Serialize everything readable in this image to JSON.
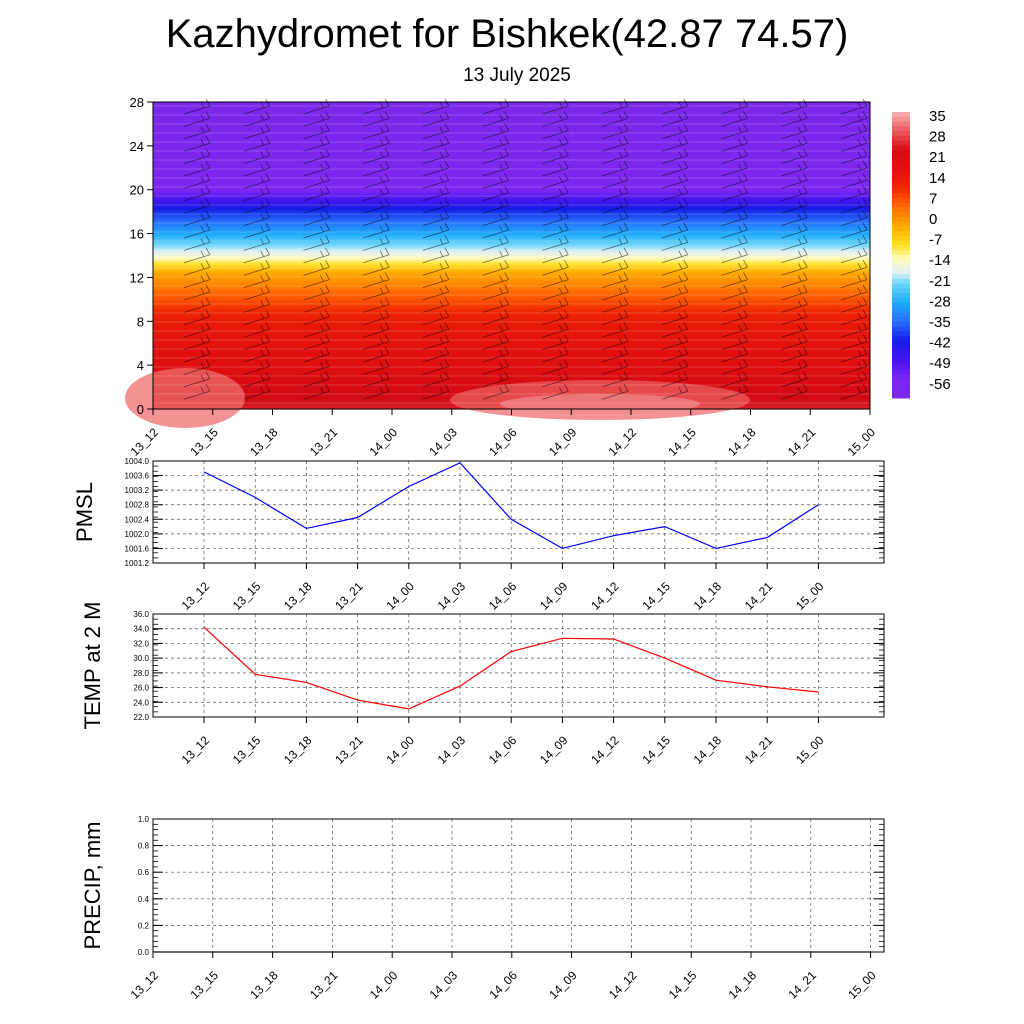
{
  "title": "Kazhydromet for Bishkek(42.87 74.57)",
  "subtitle": "13 July 2025",
  "chart_data": [
    {
      "type": "heatmap",
      "xlabel": "",
      "ylabel": "",
      "x_categories": [
        "13_12",
        "13_15",
        "13_18",
        "13_21",
        "14_00",
        "14_03",
        "14_06",
        "14_09",
        "14_12",
        "14_15",
        "14_18",
        "14_21",
        "15_00"
      ],
      "ylim": [
        0,
        28
      ],
      "yticks": [
        0,
        4,
        8,
        12,
        16,
        20,
        24,
        28
      ],
      "colorbar": {
        "labels": [
          "35",
          "28",
          "21",
          "14",
          "7",
          "0",
          "-7",
          "-14",
          "-21",
          "-28",
          "-35",
          "-42",
          "-49",
          "-56"
        ],
        "range": [
          -63,
          42
        ]
      },
      "temperature_profile": [
        {
          "y": 0,
          "value": 30
        },
        {
          "y": 2,
          "value": 26
        },
        {
          "y": 4,
          "value": 22
        },
        {
          "y": 8,
          "value": 18
        },
        {
          "y": 10,
          "value": 10
        },
        {
          "y": 12.5,
          "value": 0
        },
        {
          "y": 14,
          "value": -14
        },
        {
          "y": 16,
          "value": -28
        },
        {
          "y": 18,
          "value": -40
        },
        {
          "y": 20,
          "value": -56
        },
        {
          "y": 22,
          "value": -58
        },
        {
          "y": 28,
          "value": -62
        }
      ],
      "wind_barbs": "shown"
    },
    {
      "type": "line",
      "ylabel": "PMSL",
      "categories": [
        "13_12",
        "13_15",
        "13_18",
        "13_21",
        "14_00",
        "14_03",
        "14_06",
        "14_09",
        "14_12",
        "14_15",
        "14_18",
        "14_21",
        "15_00"
      ],
      "ylim": [
        1001.2,
        1004.0
      ],
      "yticks": [
        "1001.2",
        "1001.6",
        "1002.0",
        "1002.4",
        "1002.8",
        "1003.2",
        "1003.6",
        "1004.0"
      ],
      "series": [
        {
          "color": "#0000ff",
          "values": [
            1003.7,
            1003.0,
            1002.15,
            1002.45,
            1003.3,
            1003.95,
            1002.4,
            1001.6,
            1001.95,
            1002.2,
            1001.6,
            1001.9,
            1002.8
          ]
        }
      ],
      "grid": true
    },
    {
      "type": "line",
      "ylabel": "TEMP at 2 M",
      "categories": [
        "13_12",
        "13_15",
        "13_18",
        "13_21",
        "14_00",
        "14_03",
        "14_06",
        "14_09",
        "14_12",
        "14_15",
        "14_18",
        "14_21",
        "15_00"
      ],
      "ylim": [
        22.0,
        36.0
      ],
      "yticks": [
        "22.0",
        "24.0",
        "26.0",
        "28.0",
        "30.0",
        "32.0",
        "34.0",
        "36.0"
      ],
      "series": [
        {
          "color": "#ff0000",
          "values": [
            34.2,
            27.8,
            26.7,
            24.3,
            23.1,
            26.2,
            30.9,
            32.7,
            32.6,
            30.0,
            27.0,
            26.1,
            25.4
          ]
        }
      ],
      "grid": true
    },
    {
      "type": "line",
      "ylabel": "PRECIP, mm",
      "categories": [
        "13_12",
        "13_15",
        "13_18",
        "13_21",
        "14_00",
        "14_03",
        "14_06",
        "14_09",
        "14_12",
        "14_15",
        "14_18",
        "14_21",
        "15_00"
      ],
      "ylim": [
        0,
        1.0
      ],
      "yticks": [
        "0.0",
        "0.2",
        "0.4",
        "0.6",
        "0.8",
        "1.0"
      ],
      "series": [
        {
          "color": "#006400",
          "values": [
            0,
            0,
            0,
            0,
            0,
            0,
            0,
            0,
            0,
            0,
            0,
            0,
            0
          ]
        }
      ],
      "grid": true
    }
  ]
}
